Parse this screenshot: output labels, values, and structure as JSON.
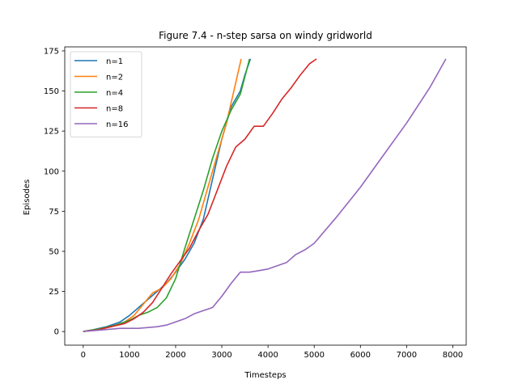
{
  "chart_data": {
    "type": "line",
    "title": "Figure 7.4 - n-step sarsa on windy gridworld",
    "xlabel": "Timesteps",
    "ylabel": "Episodes",
    "xlim": [
      -400,
      8290
    ],
    "ylim": [
      -8.5,
      177.5
    ],
    "xticks": [
      0,
      1000,
      2000,
      3000,
      4000,
      5000,
      6000,
      7000,
      8000
    ],
    "yticks": [
      0,
      25,
      50,
      75,
      100,
      125,
      150,
      175
    ],
    "grid": false,
    "legend_position": "top-left",
    "series": [
      {
        "name": "n=1",
        "color": "#1f77b4",
        "points": [
          [
            0,
            0
          ],
          [
            200,
            1
          ],
          [
            500,
            3
          ],
          [
            800,
            6
          ],
          [
            1000,
            10
          ],
          [
            1200,
            15
          ],
          [
            1400,
            20
          ],
          [
            1600,
            25
          ],
          [
            1800,
            30
          ],
          [
            2000,
            37
          ],
          [
            2200,
            45
          ],
          [
            2400,
            55
          ],
          [
            2600,
            70
          ],
          [
            2800,
            95
          ],
          [
            3000,
            120
          ],
          [
            3200,
            140
          ],
          [
            3400,
            150
          ],
          [
            3500,
            160
          ],
          [
            3620,
            170
          ]
        ]
      },
      {
        "name": "n=2",
        "color": "#ff7f0e",
        "points": [
          [
            0,
            0
          ],
          [
            300,
            1
          ],
          [
            600,
            3
          ],
          [
            900,
            6
          ],
          [
            1100,
            10
          ],
          [
            1300,
            17
          ],
          [
            1500,
            24
          ],
          [
            1700,
            27
          ],
          [
            1900,
            33
          ],
          [
            2100,
            42
          ],
          [
            2300,
            55
          ],
          [
            2500,
            70
          ],
          [
            2700,
            90
          ],
          [
            2900,
            110
          ],
          [
            3100,
            130
          ],
          [
            3300,
            155
          ],
          [
            3420,
            170
          ]
        ]
      },
      {
        "name": "n=4",
        "color": "#2ca02c",
        "points": [
          [
            0,
            0
          ],
          [
            400,
            2
          ],
          [
            700,
            4
          ],
          [
            1000,
            7
          ],
          [
            1200,
            10
          ],
          [
            1400,
            12
          ],
          [
            1600,
            15
          ],
          [
            1800,
            21
          ],
          [
            2000,
            33
          ],
          [
            2200,
            52
          ],
          [
            2400,
            70
          ],
          [
            2600,
            88
          ],
          [
            2800,
            108
          ],
          [
            3000,
            125
          ],
          [
            3200,
            138
          ],
          [
            3400,
            148
          ],
          [
            3600,
            170
          ]
        ]
      },
      {
        "name": "n=8",
        "color": "#d62728",
        "points": [
          [
            0,
            0
          ],
          [
            300,
            1
          ],
          [
            600,
            3
          ],
          [
            900,
            5
          ],
          [
            1100,
            8
          ],
          [
            1300,
            12
          ],
          [
            1500,
            18
          ],
          [
            1700,
            27
          ],
          [
            1900,
            36
          ],
          [
            2100,
            44
          ],
          [
            2300,
            52
          ],
          [
            2500,
            63
          ],
          [
            2700,
            73
          ],
          [
            2900,
            88
          ],
          [
            3100,
            103
          ],
          [
            3300,
            115
          ],
          [
            3500,
            120
          ],
          [
            3700,
            128
          ],
          [
            3900,
            128
          ],
          [
            4100,
            136
          ],
          [
            4300,
            145
          ],
          [
            4500,
            152
          ],
          [
            4700,
            160
          ],
          [
            4900,
            167
          ],
          [
            5050,
            170
          ]
        ]
      },
      {
        "name": "n=16",
        "color": "#9467bd",
        "points": [
          [
            0,
            0
          ],
          [
            400,
            1
          ],
          [
            800,
            2
          ],
          [
            1200,
            2
          ],
          [
            1600,
            3
          ],
          [
            1800,
            4
          ],
          [
            2000,
            6
          ],
          [
            2200,
            8
          ],
          [
            2400,
            11
          ],
          [
            2600,
            13
          ],
          [
            2800,
            15
          ],
          [
            3000,
            22
          ],
          [
            3200,
            30
          ],
          [
            3400,
            37
          ],
          [
            3600,
            37
          ],
          [
            3800,
            38
          ],
          [
            4000,
            39
          ],
          [
            4200,
            41
          ],
          [
            4400,
            43
          ],
          [
            4600,
            48
          ],
          [
            4800,
            51
          ],
          [
            5000,
            55
          ],
          [
            5500,
            72
          ],
          [
            6000,
            90
          ],
          [
            6500,
            110
          ],
          [
            7000,
            130
          ],
          [
            7500,
            152
          ],
          [
            7850,
            170
          ]
        ]
      }
    ]
  }
}
